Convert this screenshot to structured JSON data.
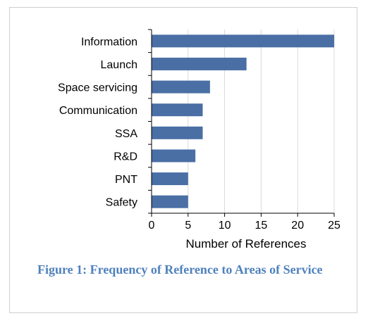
{
  "chart_data": {
    "type": "bar",
    "orientation": "horizontal",
    "categories": [
      "Information",
      "Launch",
      "Space servicing",
      "Communication",
      "SSA",
      "R&D",
      "PNT",
      "Safety"
    ],
    "values": [
      25,
      13,
      8,
      7,
      7,
      6,
      5,
      5
    ],
    "xlabel": "Number of References",
    "ylabel": "",
    "xlim": [
      0,
      25
    ],
    "xticks": [
      0,
      5,
      10,
      15,
      20,
      25
    ],
    "grid": "vertical",
    "legend": "none",
    "bar_color": "#4a6fa5",
    "grid_color": "#d9d9d9"
  },
  "caption": "Figure 1: Frequency of Reference to Areas of Service",
  "colors": {
    "caption": "#4f81bd",
    "frame_border": "#cfcfcf"
  }
}
